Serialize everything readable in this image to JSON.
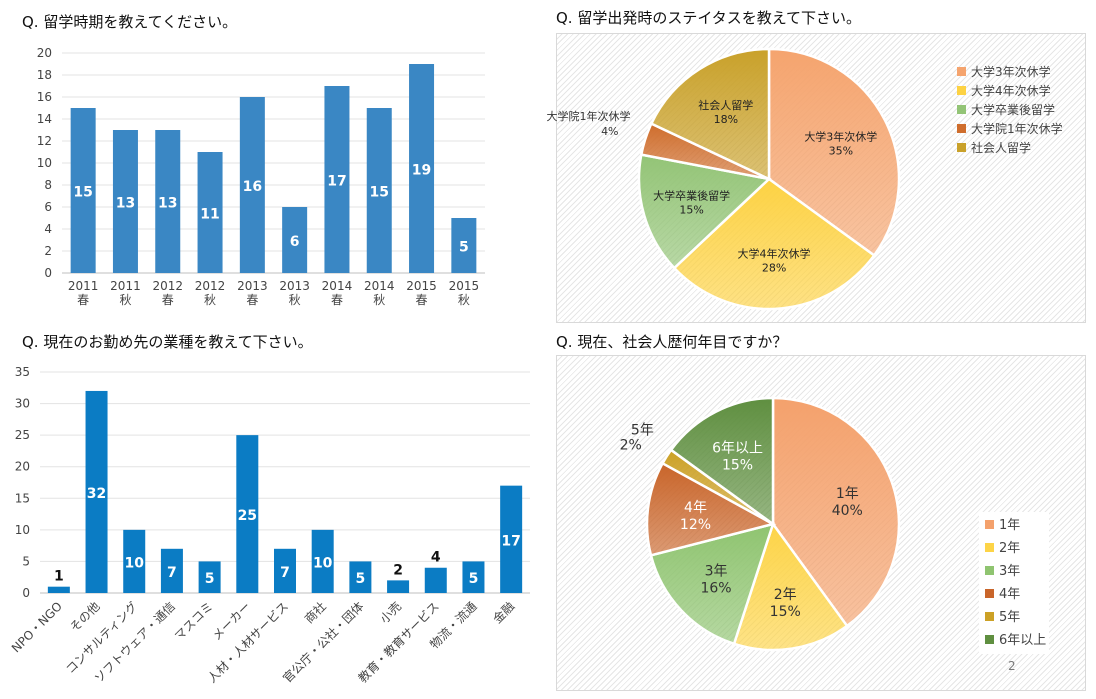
{
  "chart_data": [
    {
      "type": "bar",
      "title": "Q. 留学時期を教えてください。",
      "categories": [
        [
          "2011",
          "春"
        ],
        [
          "2011",
          "秋"
        ],
        [
          "2012",
          "春"
        ],
        [
          "2012",
          "秋"
        ],
        [
          "2013",
          "春"
        ],
        [
          "2013",
          "秋"
        ],
        [
          "2014",
          "春"
        ],
        [
          "2014",
          "秋"
        ],
        [
          "2015",
          "春"
        ],
        [
          "2015",
          "秋"
        ]
      ],
      "values": [
        15,
        13,
        13,
        11,
        16,
        6,
        17,
        15,
        19,
        5
      ],
      "ylim": [
        0,
        20
      ],
      "yticks": [
        0,
        2,
        4,
        6,
        8,
        10,
        12,
        14,
        16,
        18,
        20
      ],
      "grid": true,
      "color": "#3a87c4"
    },
    {
      "type": "pie",
      "title": "Q. 留学出発時のステイタスを教えて下さい。",
      "labels": [
        "大学3年次休学",
        "大学4年次休学",
        "大学卒業後留学",
        "大学院1年次休学",
        "社会人留学"
      ],
      "values": [
        35,
        28,
        15,
        4,
        18
      ],
      "value_labels": [
        "35%",
        "28%",
        "15%",
        "4%",
        "18%"
      ],
      "colors": [
        "#f5a46e",
        "#fdd243",
        "#93c476",
        "#cf6d2c",
        "#c9a12a"
      ],
      "label_colors": [
        "#222",
        "#222",
        "#222",
        "#222",
        "#222"
      ],
      "legend": "right"
    },
    {
      "type": "bar",
      "title": "Q. 現在のお勤め先の業種を教えて下さい。",
      "categories": [
        "NPO・NGO",
        "その他",
        "コンサルティング",
        "ソフトウェア・通信",
        "マスコミ",
        "メーカー",
        "人材・人材サービス",
        "商社",
        "官公庁・公社・団体",
        "小売",
        "教育・教育サービス",
        "物流・流通",
        "金融"
      ],
      "values": [
        1,
        32,
        10,
        7,
        5,
        25,
        7,
        10,
        5,
        2,
        4,
        5,
        17
      ],
      "ylim": [
        0,
        35
      ],
      "yticks": [
        0,
        5,
        10,
        15,
        20,
        25,
        30,
        35
      ],
      "grid": true,
      "color": "#0b7cc4"
    },
    {
      "type": "pie",
      "title": "Q. 現在、社会人歴何年目ですか？",
      "labels": [
        "1年",
        "2年",
        "3年",
        "4年",
        "5年",
        "6年以上"
      ],
      "values": [
        40,
        15,
        16,
        12,
        2,
        15
      ],
      "value_labels": [
        "40%",
        "15%",
        "16%",
        "12%",
        "2%",
        "15%"
      ],
      "colors": [
        "#f4a16c",
        "#fdd447",
        "#8fc470",
        "#c9652a",
        "#cca126",
        "#5f8f40"
      ],
      "label_colors": [
        "#333",
        "#333",
        "#333",
        "#ffffff",
        "#333",
        "#ffffff"
      ],
      "legend": "right"
    }
  ],
  "page_number": "2"
}
